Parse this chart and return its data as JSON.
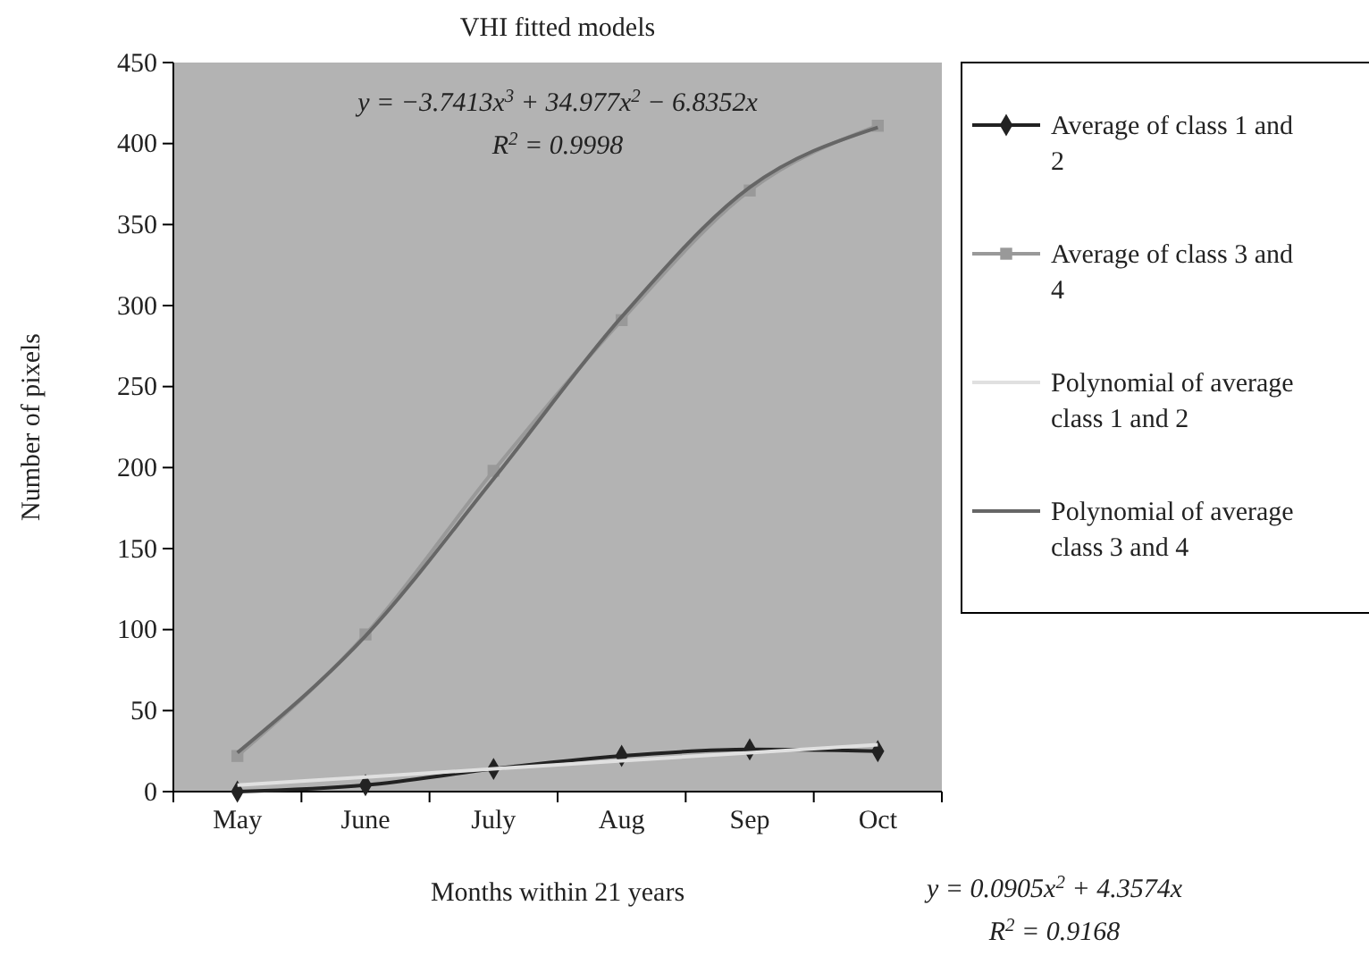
{
  "chart_data": {
    "type": "line",
    "title": "VHI fitted models",
    "xlabel": "Months within 21 years",
    "ylabel": "Number of pixels",
    "categories": [
      "May",
      "June",
      "July",
      "Aug",
      "Sep",
      "Oct"
    ],
    "series": [
      {
        "name": "Average of class 1 and 2",
        "color": "#222222",
        "marker": "diamond",
        "values": [
          0,
          4,
          14,
          22,
          26,
          25
        ]
      },
      {
        "name": "Average of class 3 and 4",
        "color": "#999999",
        "marker": "square",
        "values": [
          22,
          97,
          198,
          291,
          371,
          411
        ]
      },
      {
        "name": "Polynomial of average class 1 and 2",
        "color": "#e0e0e0",
        "marker": "none",
        "values": [
          4,
          9,
          14,
          19,
          24,
          29
        ]
      },
      {
        "name": "Polynomial of average class 3 and 4",
        "color": "#666666",
        "marker": "none",
        "values": [
          24,
          96,
          193,
          293,
          373,
          410
        ]
      }
    ],
    "ylim": [
      0,
      450
    ],
    "yticks": [
      0,
      50,
      100,
      150,
      200,
      250,
      300,
      350,
      400,
      450
    ],
    "legend": "right",
    "grid": false,
    "annotations": [
      "y = −3.7413x$^{3}$ + 34.977x$^{2}$ − 6.8352x",
      "R$^{2}$ = 0.9998",
      "y = 0.0905x$^{2}$ + 4.3574x",
      "R$^{2}$ = 0.9168"
    ]
  }
}
